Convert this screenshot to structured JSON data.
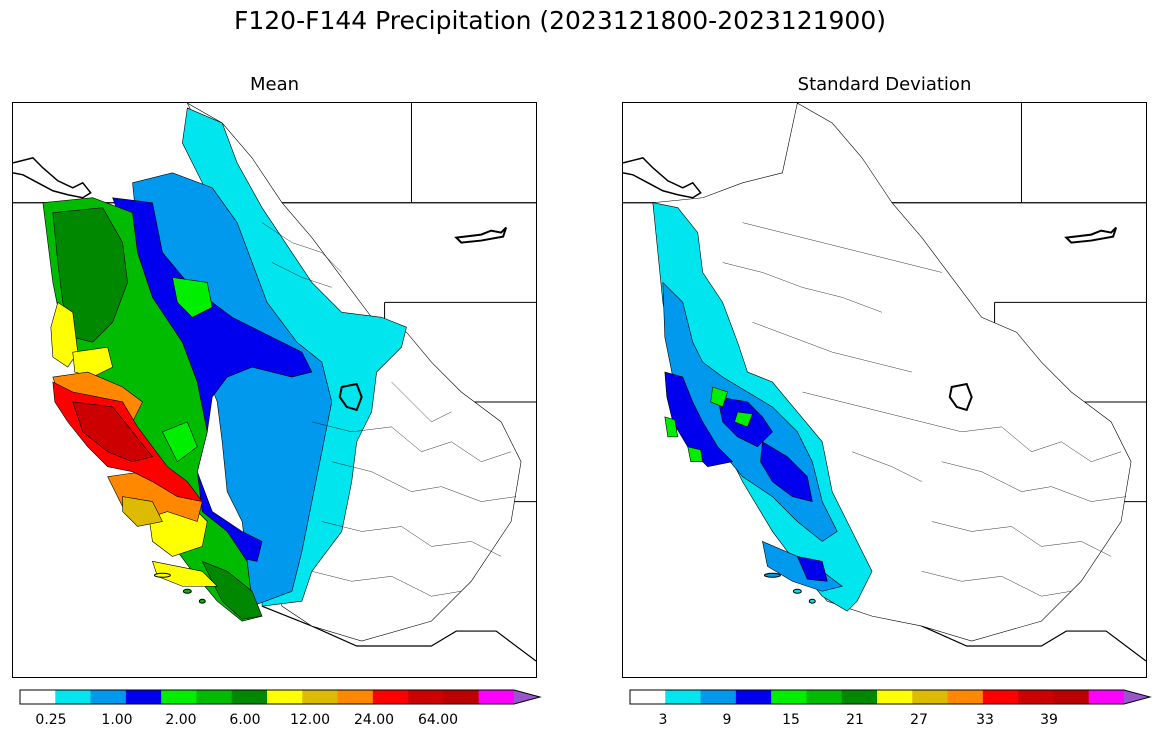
{
  "figure": {
    "title": "F120-F144 Precipitation (2023121800-2023121900)"
  },
  "panels": [
    {
      "title": "Mean",
      "colorbar": {
        "colors": [
          "#ffffff",
          "#00e5ee",
          "#0099ee",
          "#0000ee",
          "#00ee00",
          "#00bb00",
          "#008800",
          "#ffff00",
          "#ddbb00",
          "#ff8800",
          "#ff0000",
          "#cc0000",
          "#bb0000",
          "#ff00ff",
          "#9955cc"
        ],
        "tick_labels": [
          "0.25",
          "1.00",
          "2.00",
          "6.00",
          "12.00",
          "24.00",
          "64.00"
        ],
        "extend": "max"
      }
    },
    {
      "title": "Standard Deviation",
      "colorbar": {
        "colors": [
          "#ffffff",
          "#00e5ee",
          "#0099ee",
          "#0000ee",
          "#00ee00",
          "#00bb00",
          "#008800",
          "#ffff00",
          "#ddbb00",
          "#ff8800",
          "#ff0000",
          "#cc0000",
          "#bb0000",
          "#ff00ff",
          "#9955cc"
        ],
        "tick_labels": [
          "3",
          "9",
          "15",
          "21",
          "27",
          "33",
          "39"
        ],
        "extend": "max"
      }
    }
  ]
}
